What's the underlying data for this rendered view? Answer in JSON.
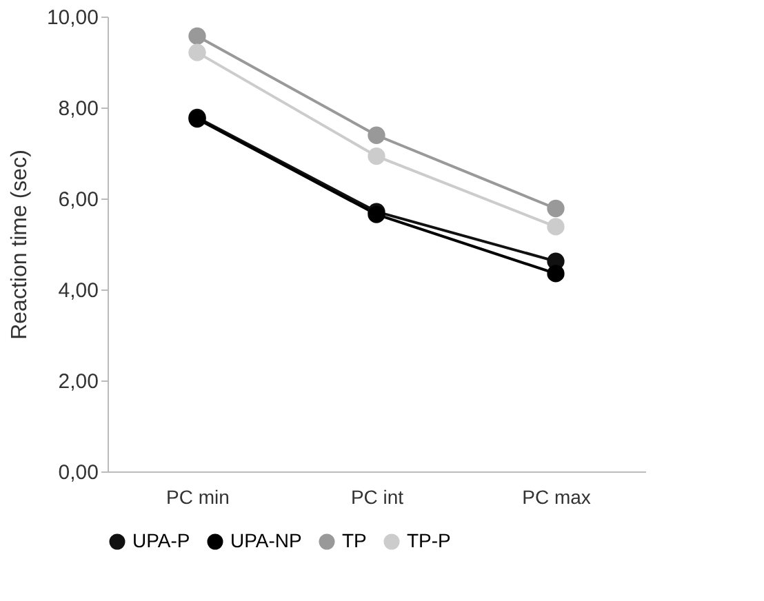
{
  "chart_data": {
    "type": "line",
    "ylabel": "Reaction time (sec)",
    "categories": [
      "PC min",
      "PC int",
      "PC max"
    ],
    "series": [
      {
        "name": "UPA-P",
        "color": "#111111",
        "values": [
          7.78,
          5.71,
          4.62
        ]
      },
      {
        "name": "UPA-NP",
        "color": "#000000",
        "values": [
          7.75,
          5.65,
          4.35
        ]
      },
      {
        "name": "TP",
        "color": "#999999",
        "values": [
          9.57,
          7.39,
          5.78
        ]
      },
      {
        "name": "TP-P",
        "color": "#cccccc",
        "values": [
          9.21,
          6.93,
          5.38
        ]
      }
    ],
    "ylim": [
      0,
      10
    ],
    "yticks": [
      {
        "value": 0,
        "label": "0,00"
      },
      {
        "value": 2,
        "label": "2,00"
      },
      {
        "value": 4,
        "label": "4,00"
      },
      {
        "value": 6,
        "label": "6,00"
      },
      {
        "value": 8,
        "label": "8,00"
      },
      {
        "value": 10,
        "label": "10,00"
      }
    ],
    "grid": false,
    "legend": "bottom",
    "marker": "circle",
    "line_style": "solid"
  }
}
